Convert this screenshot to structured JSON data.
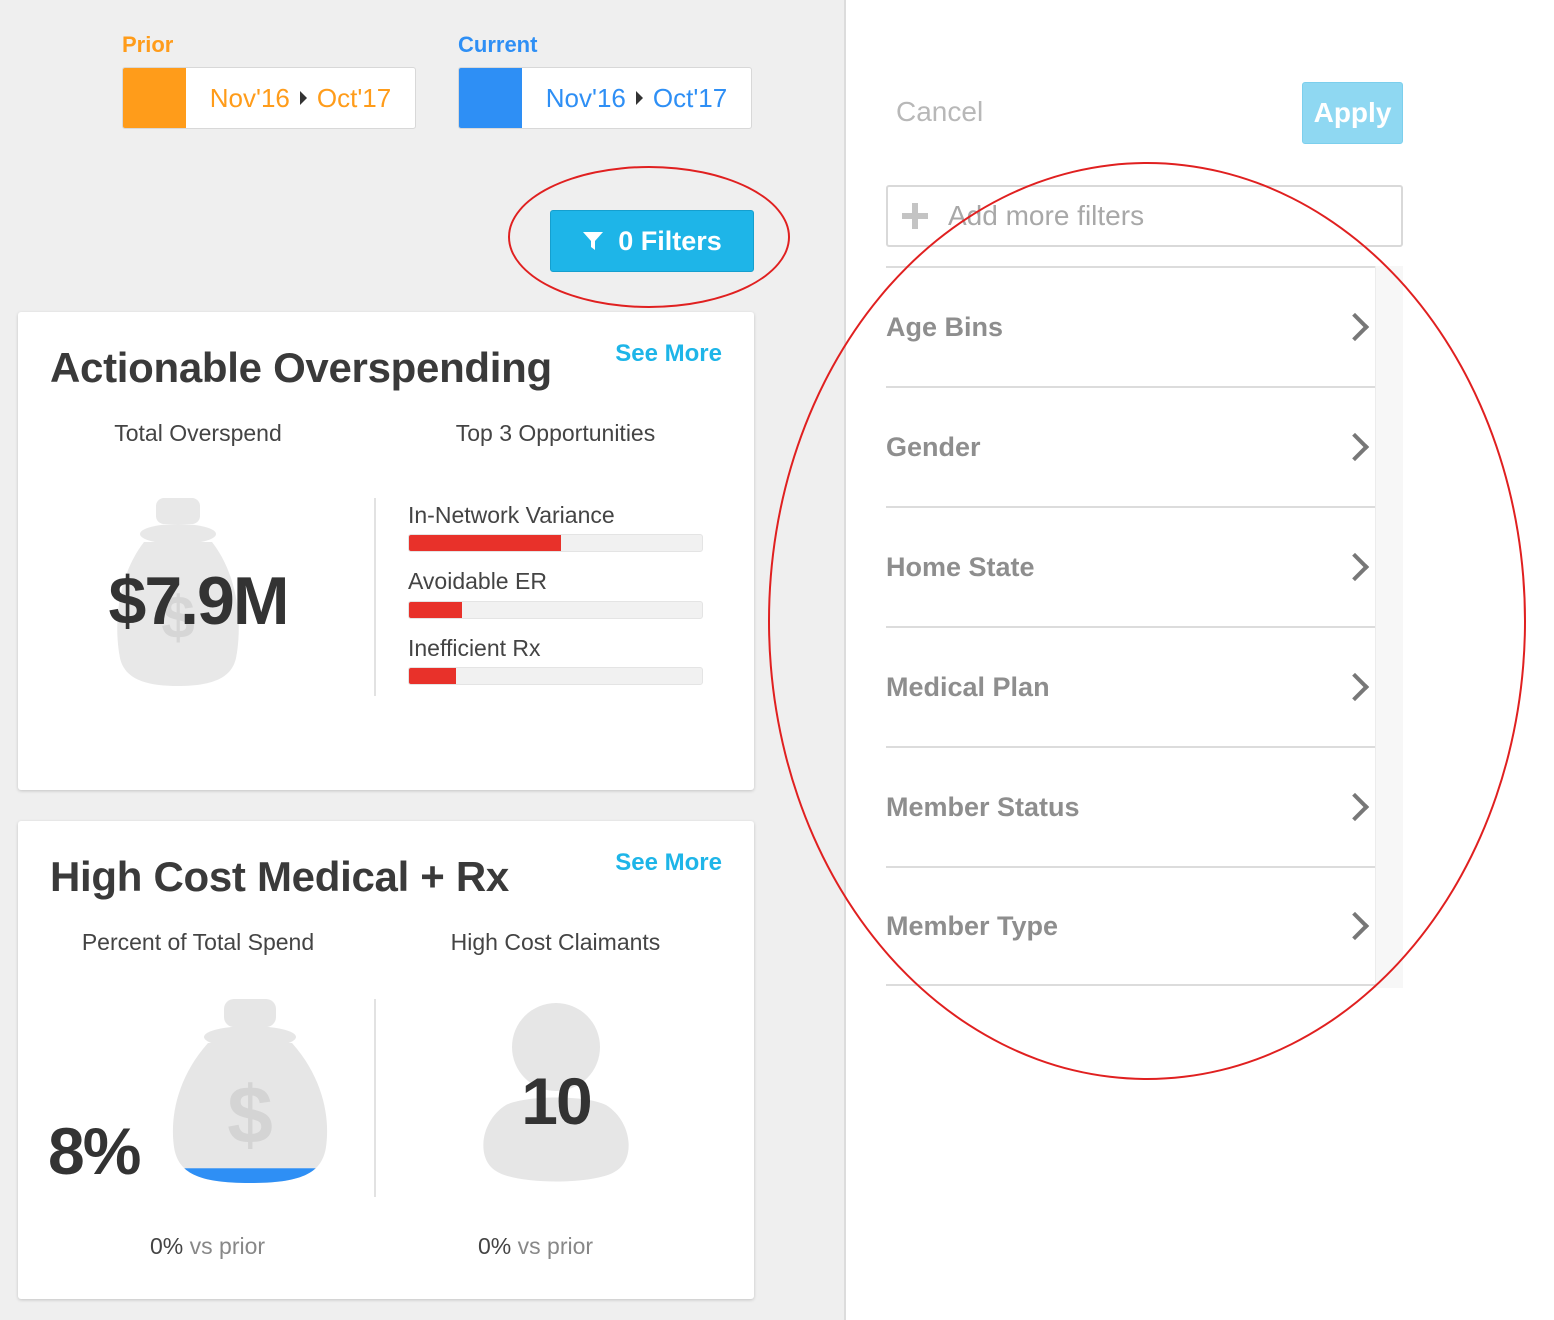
{
  "periods": {
    "prior": {
      "label": "Prior",
      "start": "Nov'16",
      "end": "Oct'17",
      "color": "#ff9c1a"
    },
    "current": {
      "label": "Current",
      "start": "Nov'16",
      "end": "Oct'17",
      "color": "#2e8ff5"
    }
  },
  "filters_button": {
    "label": "0 Filters",
    "icon": "funnel-icon"
  },
  "overspending_card": {
    "title": "Actionable Overspending",
    "see_more": "See More",
    "total_label": "Total Overspend",
    "total_value": "$7.9M",
    "opportunities_label": "Top 3 Opportunities",
    "opportunities": [
      {
        "label": "In-Network Variance",
        "fraction": 0.52
      },
      {
        "label": "Avoidable ER",
        "fraction": 0.18
      },
      {
        "label": "Inefficient Rx",
        "fraction": 0.16
      }
    ],
    "bar_color": "#e8312a"
  },
  "high_cost_card": {
    "title": "High Cost Medical + Rx",
    "see_more": "See More",
    "percent_label": "Percent of Total Spend",
    "percent_value": "8%",
    "percent_fill_fraction": 0.08,
    "percent_vs_value": "0%",
    "percent_vs_text": "vs prior",
    "claimants_label": "High Cost Claimants",
    "claimants_value": "10",
    "claimants_vs_value": "0%",
    "claimants_vs_text": "vs prior"
  },
  "filter_panel": {
    "cancel": "Cancel",
    "apply": "Apply",
    "add_placeholder": "Add more filters",
    "items": [
      "Age Bins",
      "Gender",
      "Home State",
      "Medical Plan",
      "Member Status",
      "Member Type"
    ]
  }
}
